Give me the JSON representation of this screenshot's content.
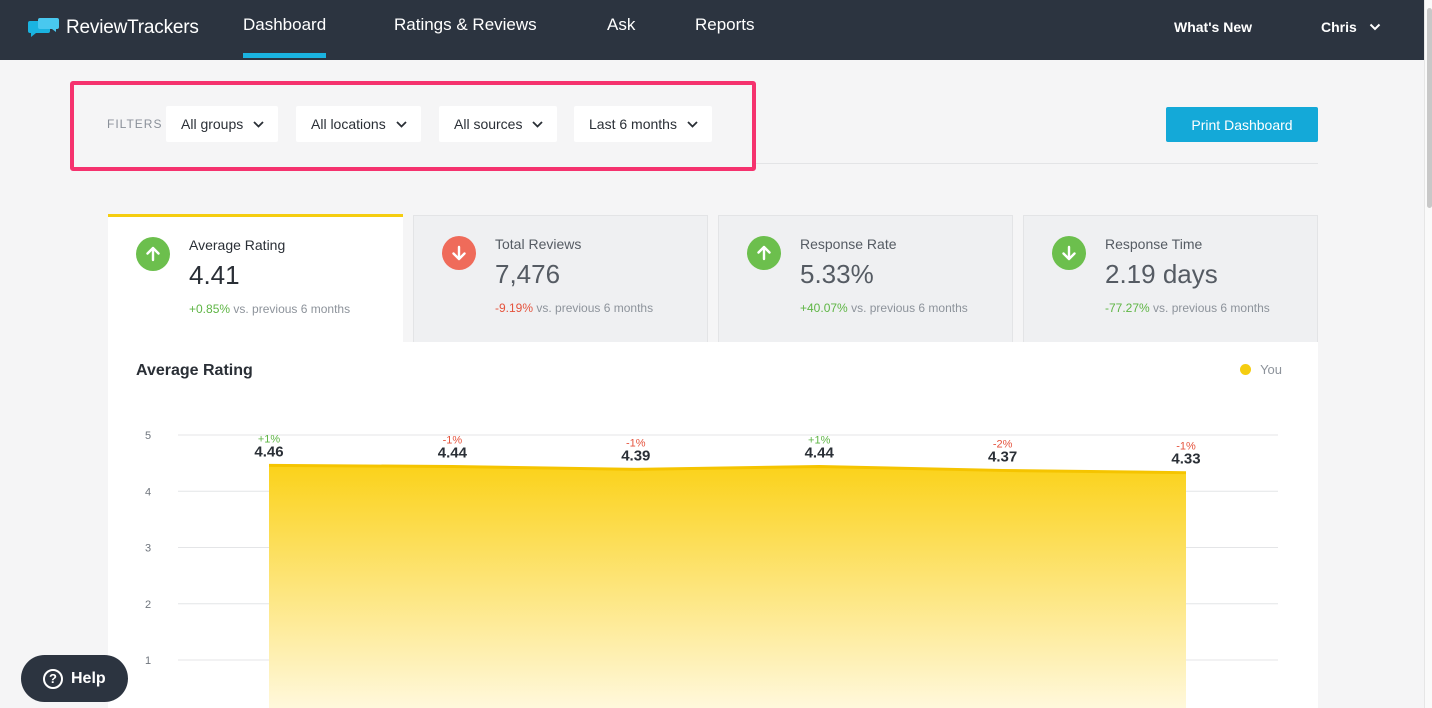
{
  "app": {
    "brand": "ReviewTrackers"
  },
  "nav": {
    "items": [
      {
        "label": "Dashboard",
        "active": true
      },
      {
        "label": "Ratings & Reviews"
      },
      {
        "label": "Ask"
      },
      {
        "label": "Reports"
      }
    ],
    "whats_new": "What's New",
    "user": "Chris"
  },
  "filters": {
    "label": "FILTERS",
    "groups": "All groups",
    "locations": "All locations",
    "sources": "All sources",
    "period": "Last 6 months"
  },
  "print_label": "Print Dashboard",
  "cards": [
    {
      "title": "Average Rating",
      "value": "4.41",
      "change": "+0.85%",
      "direction": "up",
      "compare": "vs. previous 6 months"
    },
    {
      "title": "Total Reviews",
      "value": "7,476",
      "change": "-9.19%",
      "direction": "down",
      "compare": "vs. previous 6 months"
    },
    {
      "title": "Response Rate",
      "value": "5.33%",
      "change": "+40.07%",
      "direction": "up",
      "compare": "vs. previous 6 months"
    },
    {
      "title": "Response Time",
      "value": "2.19 days",
      "change": "-77.27%",
      "direction": "down",
      "compare": "vs. previous 6 months"
    }
  ],
  "chart_title": "Average Rating",
  "legend_label": "You",
  "chart_data": {
    "type": "area",
    "title": "Average Rating",
    "xlabel": "",
    "ylabel": "",
    "ylim": [
      0,
      5
    ],
    "yticks": [
      1,
      2,
      3,
      4,
      5
    ],
    "grid": true,
    "legend_position": "top-right",
    "series": [
      {
        "name": "You",
        "color": "#f5cd10",
        "values": [
          4.46,
          4.44,
          4.39,
          4.44,
          4.37,
          4.33
        ],
        "labels": [
          "4.46",
          "4.44",
          "4.39",
          "4.44",
          "4.37",
          "4.33"
        ],
        "changes": [
          "+1%",
          "-1%",
          "-1%",
          "+1%",
          "-2%",
          "-1%"
        ]
      }
    ]
  },
  "help_label": "Help",
  "colors": {
    "accent": "#14a9d8",
    "highlight": "#f5326e",
    "positive": "#5eb544",
    "negative": "#e5533d",
    "series": "#f5cd10",
    "nav_bg": "#2c3440"
  }
}
